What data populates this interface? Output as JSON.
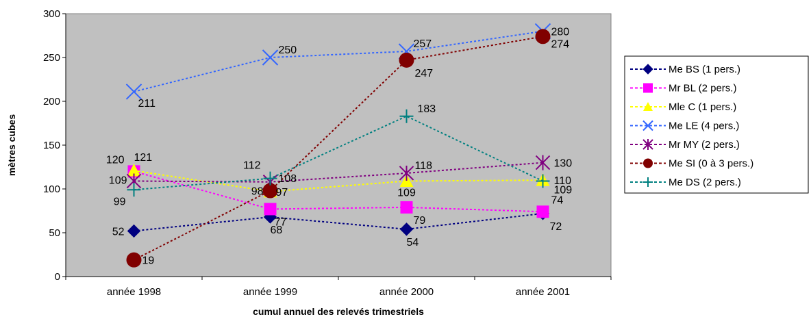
{
  "chart_data": {
    "type": "line",
    "title": "",
    "xlabel": "cumul annuel des relevés trimestriels",
    "ylabel": "mètres cubes",
    "categories": [
      "année 1998",
      "année 1999",
      "année 2000",
      "année 2001"
    ],
    "ylim": [
      0,
      300
    ],
    "yticks": [
      0,
      50,
      100,
      150,
      200,
      250,
      300
    ],
    "grid": false,
    "plot_background": "#c0c0c0",
    "legend_position": "right",
    "series": [
      {
        "name": "Me BS (1 pers.)",
        "values": [
          52,
          68,
          54,
          72
        ],
        "color": "#000080",
        "marker": "diamond"
      },
      {
        "name": "Mr BL (2 pers.)",
        "values": [
          120,
          77,
          79,
          74
        ],
        "color": "#ff00ff",
        "marker": "square"
      },
      {
        "name": "Mle C (1 pers.)",
        "values": [
          121,
          97,
          109,
          110
        ],
        "color": "#ffff00",
        "marker": "triangle"
      },
      {
        "name": "Me LE (4 pers.)",
        "values": [
          211,
          250,
          257,
          280
        ],
        "color": "#3366ff",
        "marker": "x"
      },
      {
        "name": "Mr MY (2 pers.)",
        "values": [
          109,
          108,
          118,
          130
        ],
        "color": "#800080",
        "marker": "star"
      },
      {
        "name": "Me SI (0 à 3 pers.)",
        "values": [
          19,
          98,
          247,
          274
        ],
        "color": "#800000",
        "marker": "circle"
      },
      {
        "name": "Me DS (2 pers.)",
        "values": [
          99,
          112,
          183,
          109
        ],
        "color": "#008080",
        "marker": "plus"
      }
    ]
  }
}
